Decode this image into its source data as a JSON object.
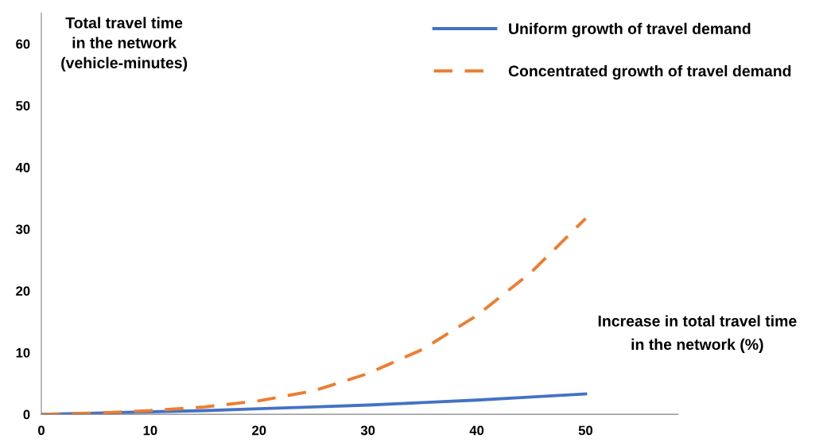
{
  "chart_data": {
    "type": "line",
    "ylabel": "Total travel time\nin the network\n(vehicle-minutes)",
    "xlabel": "Increase in total travel time\nin the network (%)",
    "x": [
      0,
      5,
      10,
      15,
      20,
      25,
      30,
      35,
      40,
      45,
      50
    ],
    "series": [
      {
        "name": "Uniform growth of travel demand",
        "color": "#4472c4",
        "line_style": "solid",
        "values": [
          0,
          0.2,
          0.4,
          0.6,
          0.9,
          1.2,
          1.5,
          1.9,
          2.3,
          2.8,
          3.3
        ]
      },
      {
        "name": "Concentrated growth of travel demand",
        "color": "#ed7d31",
        "line_style": "dashed",
        "values": [
          0,
          0.2,
          0.6,
          1.2,
          2.2,
          3.8,
          6.6,
          10.5,
          16,
          23,
          31.7
        ]
      }
    ],
    "xlim": [
      0,
      58.5
    ],
    "ylim": [
      0,
      65
    ],
    "xticks": [
      0,
      10,
      20,
      30,
      40,
      50
    ],
    "yticks": [
      0,
      10,
      20,
      30,
      40,
      50,
      60
    ],
    "grid": false,
    "legend": "top right",
    "marker": "none"
  }
}
